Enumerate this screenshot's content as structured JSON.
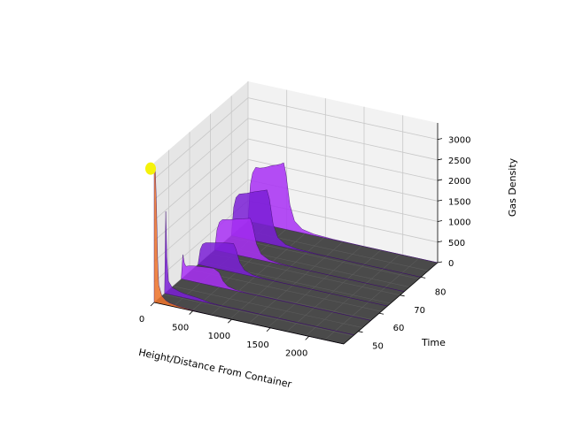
{
  "chart_data": {
    "type": "surface3d",
    "colormap": "gnuplot",
    "colors": {
      "pane": "#f2f2f2",
      "pane_side": "#e6e6e6",
      "grid": "#c8c8c8",
      "floor": "#4a4a4a",
      "surface_low": "#7a1fd6",
      "surface_mid": "#a82ff5",
      "surface_high": "#f0742a",
      "peak": "#f5f20a"
    },
    "axes": {
      "x": {
        "label": "Height/Distance From Container",
        "ticks": [
          0,
          500,
          1000,
          1500,
          2000
        ],
        "range": [
          0,
          2450
        ]
      },
      "y": {
        "label": "Time",
        "ticks": [
          50,
          60,
          70,
          80
        ],
        "range": [
          43,
          88
        ]
      },
      "z": {
        "label": "Gas Density",
        "ticks": [
          0,
          500,
          1000,
          1500,
          2000,
          2500,
          3000
        ],
        "range": [
          0,
          3400
        ]
      }
    },
    "series": [
      {
        "y": 88,
        "points": [
          [
            0,
            0
          ],
          [
            30,
            900
          ],
          [
            60,
            1200
          ],
          [
            100,
            1350
          ],
          [
            150,
            1350
          ],
          [
            200,
            1380
          ],
          [
            250,
            1420
          ],
          [
            300,
            1470
          ],
          [
            360,
            1510
          ],
          [
            420,
            1560
          ],
          [
            460,
            1610
          ],
          [
            490,
            1350
          ],
          [
            540,
            620
          ],
          [
            600,
            250
          ],
          [
            700,
            90
          ],
          [
            850,
            35
          ],
          [
            1100,
            10
          ],
          [
            1500,
            3
          ],
          [
            2000,
            1
          ],
          [
            2450,
            0
          ]
        ]
      },
      {
        "y": 80,
        "points": [
          [
            0,
            0
          ],
          [
            30,
            700
          ],
          [
            60,
            950
          ],
          [
            100,
            1050
          ],
          [
            150,
            1080
          ],
          [
            200,
            1110
          ],
          [
            250,
            1150
          ],
          [
            300,
            1190
          ],
          [
            360,
            1230
          ],
          [
            420,
            1270
          ],
          [
            460,
            1300
          ],
          [
            490,
            1100
          ],
          [
            540,
            500
          ],
          [
            600,
            200
          ],
          [
            700,
            70
          ],
          [
            850,
            25
          ],
          [
            1100,
            8
          ],
          [
            1500,
            2
          ],
          [
            2450,
            0
          ]
        ]
      },
      {
        "y": 72,
        "points": [
          [
            0,
            0
          ],
          [
            30,
            500
          ],
          [
            60,
            700
          ],
          [
            100,
            780
          ],
          [
            150,
            800
          ],
          [
            200,
            820
          ],
          [
            250,
            850
          ],
          [
            300,
            880
          ],
          [
            360,
            910
          ],
          [
            420,
            940
          ],
          [
            460,
            960
          ],
          [
            490,
            800
          ],
          [
            540,
            370
          ],
          [
            600,
            150
          ],
          [
            700,
            50
          ],
          [
            850,
            18
          ],
          [
            1100,
            5
          ],
          [
            1500,
            1
          ],
          [
            2450,
            0
          ]
        ]
      },
      {
        "y": 64,
        "points": [
          [
            0,
            0
          ],
          [
            30,
            380
          ],
          [
            60,
            520
          ],
          [
            100,
            570
          ],
          [
            150,
            590
          ],
          [
            200,
            610
          ],
          [
            250,
            630
          ],
          [
            300,
            650
          ],
          [
            360,
            670
          ],
          [
            420,
            690
          ],
          [
            460,
            700
          ],
          [
            490,
            580
          ],
          [
            540,
            270
          ],
          [
            600,
            110
          ],
          [
            700,
            40
          ],
          [
            850,
            12
          ],
          [
            1100,
            4
          ],
          [
            2450,
            0
          ]
        ]
      },
      {
        "y": 56,
        "points": [
          [
            0,
            0
          ],
          [
            20,
            600
          ],
          [
            40,
            400
          ],
          [
            60,
            330
          ],
          [
            100,
            360
          ],
          [
            150,
            380
          ],
          [
            200,
            390
          ],
          [
            250,
            400
          ],
          [
            300,
            410
          ],
          [
            360,
            420
          ],
          [
            420,
            430
          ],
          [
            490,
            360
          ],
          [
            540,
            170
          ],
          [
            600,
            70
          ],
          [
            700,
            25
          ],
          [
            850,
            8
          ],
          [
            2450,
            0
          ]
        ]
      },
      {
        "y": 48,
        "points": [
          [
            0,
            0
          ],
          [
            15,
            2000
          ],
          [
            30,
            900
          ],
          [
            50,
            320
          ],
          [
            100,
            180
          ],
          [
            150,
            150
          ],
          [
            200,
            120
          ],
          [
            250,
            100
          ],
          [
            300,
            90
          ],
          [
            360,
            80
          ],
          [
            420,
            70
          ],
          [
            490,
            50
          ],
          [
            540,
            30
          ],
          [
            600,
            15
          ],
          [
            700,
            6
          ],
          [
            2450,
            0
          ]
        ]
      },
      {
        "y": 43,
        "points": [
          [
            0,
            3300
          ],
          [
            15,
            3250
          ],
          [
            30,
            2400
          ],
          [
            45,
            1100
          ],
          [
            60,
            450
          ],
          [
            100,
            200
          ],
          [
            150,
            110
          ],
          [
            200,
            70
          ],
          [
            300,
            40
          ],
          [
            400,
            25
          ],
          [
            500,
            12
          ],
          [
            600,
            6
          ],
          [
            800,
            2
          ],
          [
            2450,
            0
          ]
        ]
      }
    ]
  }
}
